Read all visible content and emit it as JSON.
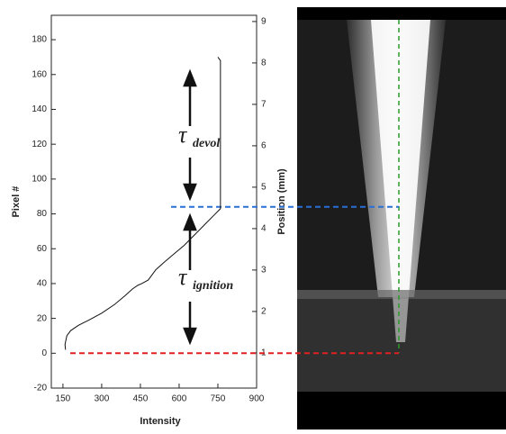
{
  "chart_data": {
    "type": "line",
    "x_label": "Intensity",
    "y_label": "Pixel #",
    "y2_label": "Position (mm)",
    "xlim": [
      105,
      900
    ],
    "xticks": [
      150,
      300,
      450,
      600,
      750,
      900
    ],
    "ylim": [
      -20,
      194
    ],
    "yticks": [
      -20,
      0,
      20,
      40,
      60,
      80,
      100,
      120,
      140,
      160,
      180
    ],
    "y2lim": [
      0.15,
      9.15
    ],
    "y2ticks": [
      1,
      2,
      3,
      4,
      5,
      6,
      7,
      8,
      9
    ],
    "series": [
      {
        "color": "#111111",
        "x": [
          160,
          158,
          165,
          180,
          210,
          250,
          300,
          350,
          390,
          420,
          440,
          455,
          480,
          510,
          540,
          580,
          620,
          660,
          700,
          740,
          760,
          760,
          750
        ],
        "values": [
          2,
          5,
          10,
          13,
          16,
          19,
          23,
          28,
          33,
          37,
          39,
          40,
          42,
          48,
          52,
          57,
          62,
          68,
          74,
          80,
          83,
          168,
          170
        ]
      }
    ],
    "reference_lines": [
      {
        "y": 84,
        "color": "#2a6fd6"
      },
      {
        "y": 0,
        "color": "#e02020"
      }
    ],
    "annotations": [
      {
        "text": "τ",
        "subscript": "devol"
      },
      {
        "text": "τ",
        "subscript": "ignition"
      }
    ]
  }
}
